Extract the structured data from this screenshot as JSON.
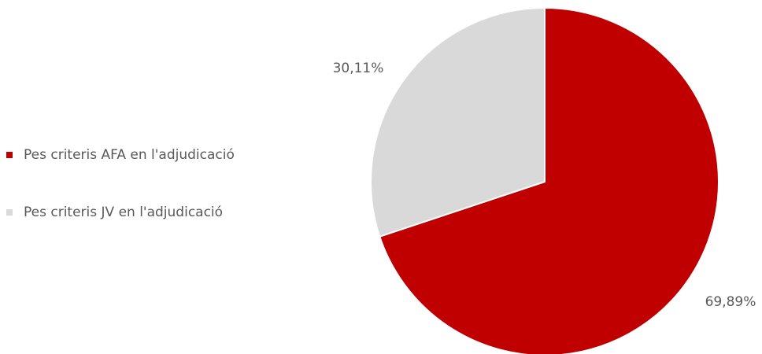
{
  "chart_data": {
    "type": "pie",
    "categories": [
      "Pes criteris AFA en l'adjudicació",
      "Pes criteris JV en l'adjudicació"
    ],
    "values": [
      69.89,
      30.11
    ],
    "value_labels": [
      "69,89%",
      "30,11%"
    ],
    "colors": [
      "#c00000",
      "#d9d9d9"
    ],
    "legend": "left"
  }
}
